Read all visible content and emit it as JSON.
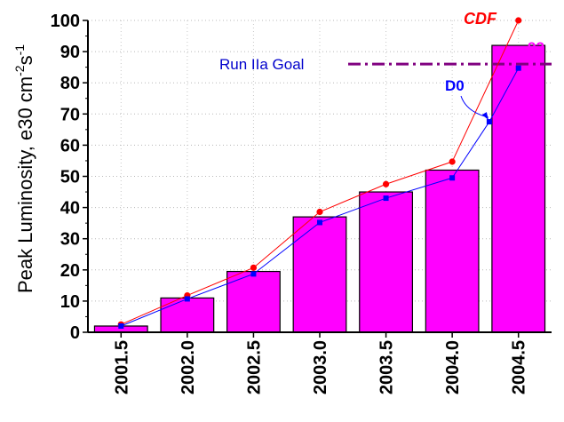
{
  "chart_data": {
    "type": "bar",
    "ylabel_main": "Peak Luminosity, e30 cm",
    "ylabel_exp1": "-2",
    "ylabel_unit": "s",
    "ylabel_exp2": "-1",
    "ylim": [
      0,
      100
    ],
    "xlim": [
      2001.25,
      2004.75
    ],
    "grid": true,
    "categories": [
      "2001.5",
      "2002.0",
      "2002.5",
      "2003.0",
      "2003.5",
      "2004.0",
      "2004.5"
    ],
    "x": [
      2001.5,
      2002.0,
      2002.5,
      2003.0,
      2003.5,
      2004.0,
      2004.5
    ],
    "values": [
      2,
      11,
      19.5,
      37,
      45,
      52,
      92
    ],
    "y_ticks": [
      0,
      10,
      20,
      30,
      40,
      50,
      60,
      70,
      80,
      90,
      100
    ],
    "series": [
      {
        "name": "CDF",
        "color": "#ff0000",
        "marker": "circle",
        "x": [
          2001.5,
          2002.0,
          2002.5,
          2003.0,
          2003.5,
          2004.0,
          2004.5
        ],
        "y": [
          2.5,
          11.8,
          20.7,
          38.6,
          47.5,
          54.7,
          100
        ]
      },
      {
        "name": "D0",
        "color": "#0000ff",
        "marker": "square",
        "x": [
          2001.5,
          2002.0,
          2002.5,
          2003.0,
          2003.5,
          2004.0,
          2004.28,
          2004.5
        ],
        "y": [
          2,
          10.7,
          18.7,
          35.2,
          43,
          49.5,
          67.5,
          84.7
        ]
      }
    ],
    "goal": {
      "label": "Run IIa  Goal",
      "value": 86,
      "color": "#800080"
    },
    "annotations": {
      "bar_top_label": "92",
      "bar_top_color": "#ff00ff"
    },
    "bar_color": "#ff00ff"
  }
}
